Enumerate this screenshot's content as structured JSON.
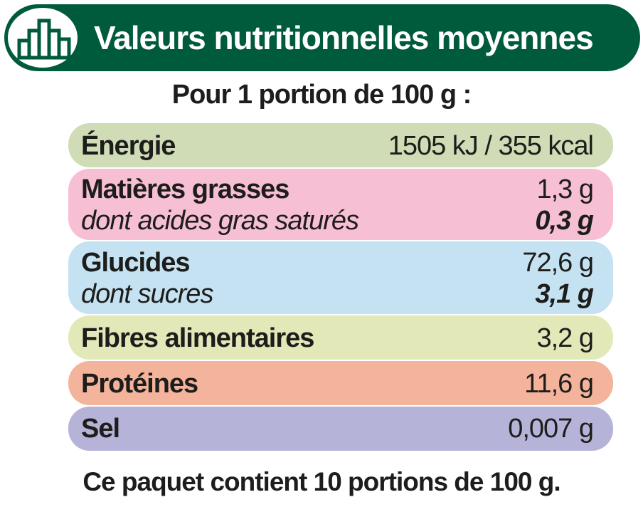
{
  "header": {
    "title": "Valeurs nutritionnelles moyennes",
    "logo_icon": "bar-chart-icon"
  },
  "portion_label": "Pour 1 portion de 100 g :",
  "rows": [
    {
      "color": "#cfdcb5",
      "main": {
        "label": "Énergie",
        "value": "1505 kJ / 355 kcal"
      }
    },
    {
      "color": "#f6bfd4",
      "main": {
        "label": "Matières grasses",
        "value": "1,3 g"
      },
      "sub": {
        "label": "dont acides gras saturés",
        "value": "0,3 g"
      }
    },
    {
      "color": "#c5e2f2",
      "main": {
        "label": "Glucides",
        "value": "72,6 g"
      },
      "sub": {
        "label": "dont sucres",
        "value": "3,1 g"
      }
    },
    {
      "color": "#e3e8b9",
      "main": {
        "label": "Fibres alimentaires",
        "value": "3,2 g"
      }
    },
    {
      "color": "#f4b39b",
      "main": {
        "label": "Protéines",
        "value": "11,6 g"
      }
    },
    {
      "color": "#b5b3d8",
      "main": {
        "label": "Sel",
        "value": "0,007 g"
      }
    }
  ],
  "footer": "Ce paquet contient 10 portions de 100 g."
}
